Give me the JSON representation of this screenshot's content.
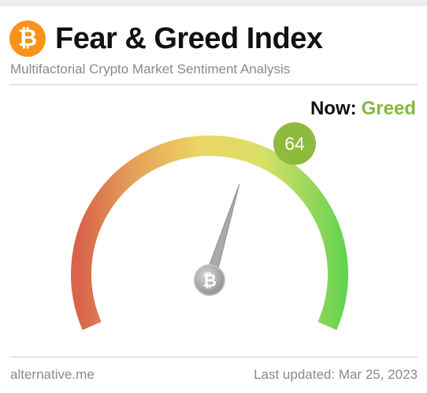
{
  "header": {
    "logo_glyph": "₿",
    "title": "Fear & Greed Index",
    "subtitle": "Multifactorial Crypto Market Sentiment Analysis"
  },
  "now": {
    "label": "Now:",
    "classification": "Greed"
  },
  "gauge": {
    "value": "64",
    "min": 0,
    "max": 100,
    "hub_glyph": "₿"
  },
  "footer": {
    "source": "alternative.me",
    "last_updated": "Last updated: Mar 25, 2023"
  },
  "colors": {
    "brand": "#f7931a",
    "greed": "#86b840",
    "badge": "#8ebb3e",
    "fear_end": "#d9634b",
    "neutral_mid": "#e9d45e",
    "greed_end": "#5fd44f"
  }
}
